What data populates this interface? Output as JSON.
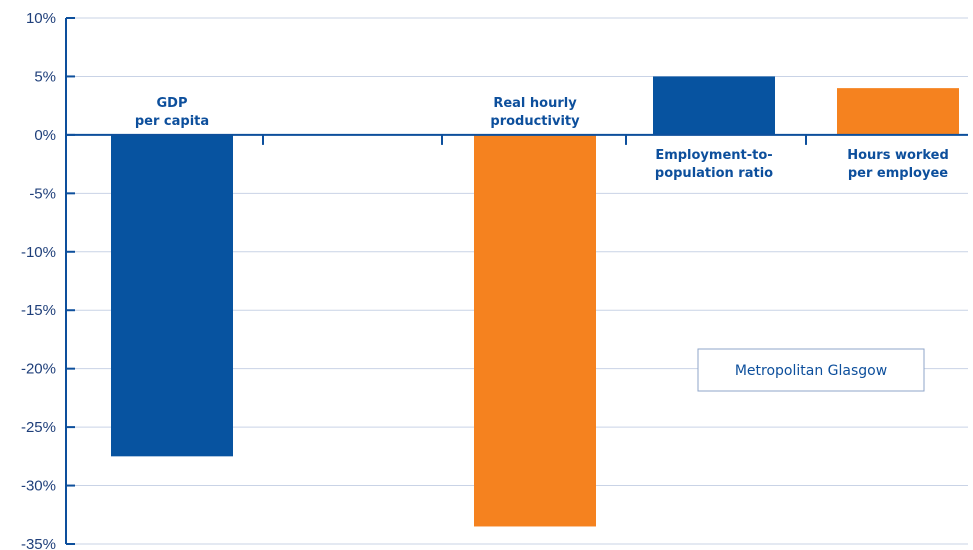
{
  "chart_data": {
    "type": "bar",
    "categories": [
      [
        "GDP",
        "per capita"
      ],
      [
        "Real hourly",
        "productivity"
      ],
      [
        "Employment-to-",
        "population ratio"
      ],
      [
        "Hours worked",
        "per employee"
      ]
    ],
    "series": [
      {
        "values": [
          -27.5,
          -33.5,
          5.0,
          4.0
        ]
      }
    ],
    "bar_colors": [
      "#0753a0",
      "#f5821f",
      "#0753a0",
      "#f5821f"
    ],
    "ylim": [
      -35,
      10
    ],
    "yticks": [
      10,
      5,
      0,
      -5,
      -10,
      -15,
      -20,
      -25,
      -30,
      -35
    ],
    "ytick_labels": [
      "10%",
      "5%",
      "0%",
      "-5%",
      "-10%",
      "-15%",
      "-20%",
      "-25%",
      "-30%",
      "-35%"
    ],
    "grid": true,
    "legend": {
      "text": "Metropolitan Glasgow",
      "placement": "lower-right"
    },
    "colors": {
      "axis": "#0d4f9c",
      "grid": "#c9d3e6",
      "text": "#1f3f7a"
    }
  }
}
